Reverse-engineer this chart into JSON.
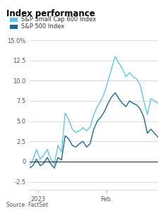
{
  "title": "Index performance",
  "legend": [
    "S&P Small Cap 600 Index",
    "S&P 500 Index"
  ],
  "legend_colors": [
    "#5bc8e8",
    "#1a6b8a"
  ],
  "source": "Source: FactSet",
  "ylim": [
    -3.5,
    15.8
  ],
  "yticks": [
    -2.5,
    0,
    2.5,
    5.0,
    7.5,
    10.0,
    12.5,
    15.0
  ],
  "ytick_labels": [
    "-2.5",
    "0",
    "2.5",
    "5.0",
    "7.5",
    "10.0",
    "12.5",
    "15.0%"
  ],
  "xtick_labels": [
    "2023",
    "Feb."
  ],
  "xtick_positions": [
    0.07,
    0.6
  ],
  "background_color": "#ffffff",
  "line1_color": "#5bc8e8",
  "line2_color": "#1a6b8a",
  "small_cap": [
    -0.5,
    0.2,
    1.5,
    0.3,
    0.8,
    1.5,
    0.3,
    -0.3,
    2.0,
    1.2,
    6.0,
    5.2,
    4.0,
    3.6,
    3.8,
    4.2,
    3.8,
    4.3,
    5.8,
    6.8,
    7.5,
    8.5,
    10.0,
    11.5,
    13.0,
    12.2,
    11.5,
    10.5,
    11.0,
    10.5,
    10.2,
    9.5,
    7.5,
    5.8,
    7.8,
    7.5,
    7.2
  ],
  "sp500": [
    -0.8,
    -0.5,
    0.3,
    -0.5,
    -0.2,
    0.5,
    -0.3,
    -0.8,
    0.5,
    0.2,
    3.2,
    2.8,
    2.0,
    1.8,
    2.2,
    2.5,
    1.8,
    2.2,
    4.0,
    5.0,
    5.5,
    6.2,
    7.2,
    8.0,
    8.5,
    7.8,
    7.2,
    6.8,
    7.5,
    7.2,
    7.0,
    6.5,
    5.5,
    3.5,
    4.0,
    3.5,
    3.0
  ]
}
